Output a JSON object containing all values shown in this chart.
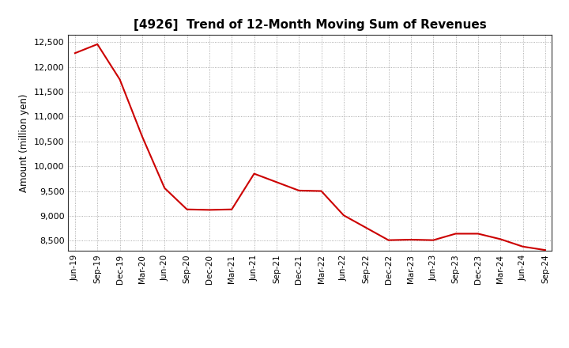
{
  "title": "[4926]  Trend of 12-Month Moving Sum of Revenues",
  "ylabel": "Amount (million yen)",
  "line_color": "#cc0000",
  "background_color": "#ffffff",
  "plot_bg_color": "#ffffff",
  "grid_color": "#999999",
  "ylim": [
    8300,
    12650
  ],
  "yticks": [
    8500,
    9000,
    9500,
    10000,
    10500,
    11000,
    11500,
    12000,
    12500
  ],
  "x_labels": [
    "Jun-19",
    "Sep-19",
    "Dec-19",
    "Mar-20",
    "Jun-20",
    "Sep-20",
    "Dec-20",
    "Mar-21",
    "Jun-21",
    "Sep-21",
    "Dec-21",
    "Mar-22",
    "Jun-22",
    "Sep-22",
    "Dec-22",
    "Mar-23",
    "Jun-23",
    "Sep-23",
    "Dec-23",
    "Mar-24",
    "Jun-24",
    "Sep-24"
  ],
  "values": [
    12280,
    12460,
    11750,
    10600,
    9560,
    9130,
    9120,
    9130,
    9850,
    9680,
    9510,
    9500,
    9010,
    8760,
    8510,
    8520,
    8510,
    8640,
    8640,
    8530,
    8380,
    8310
  ]
}
